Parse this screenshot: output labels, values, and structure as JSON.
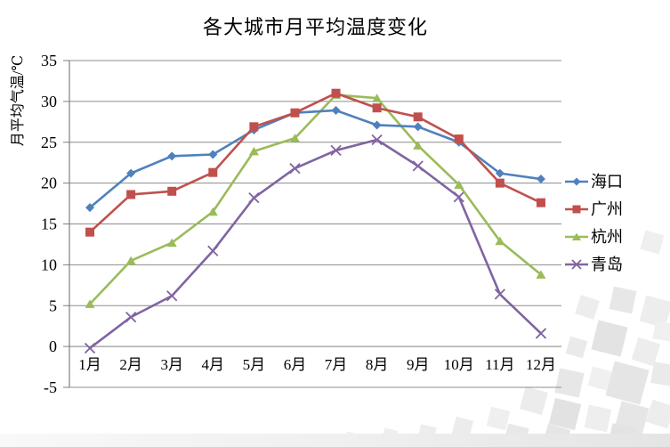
{
  "chart_data": {
    "type": "line",
    "title": "各大城市月平均温度变化",
    "ylabel": "月平均气温/℃",
    "xlabel": "",
    "categories": [
      "1月",
      "2月",
      "3月",
      "4月",
      "5月",
      "6月",
      "7月",
      "8月",
      "9月",
      "10月",
      "11月",
      "12月"
    ],
    "y_ticks": [
      35,
      30,
      25,
      20,
      15,
      10,
      5,
      0,
      -5
    ],
    "ylim": [
      -5,
      35
    ],
    "grid": "horizontal",
    "legend_position": "right",
    "gridline_color": "#8c8c8c",
    "axis_color": "#7f7f7f",
    "series": [
      {
        "name": "海口",
        "color": "#4F81BD",
        "marker": "diamond",
        "values": [
          17.0,
          21.2,
          23.3,
          23.5,
          26.5,
          28.6,
          28.9,
          27.1,
          26.9,
          25.0,
          21.2,
          20.5
        ]
      },
      {
        "name": "广州",
        "color": "#C0504D",
        "marker": "square",
        "values": [
          14.0,
          18.6,
          19.0,
          21.3,
          26.9,
          28.6,
          31.0,
          29.2,
          28.1,
          25.4,
          20.0,
          17.6
        ]
      },
      {
        "name": "杭州",
        "color": "#9BBB59",
        "marker": "triangle",
        "values": [
          5.2,
          10.5,
          12.7,
          16.5,
          23.9,
          25.5,
          30.8,
          30.4,
          24.6,
          19.8,
          12.9,
          8.8
        ]
      },
      {
        "name": "青岛",
        "color": "#8064A2",
        "marker": "x",
        "values": [
          -0.2,
          3.6,
          6.2,
          11.7,
          18.2,
          21.8,
          24.0,
          25.3,
          22.1,
          18.3,
          6.4,
          1.6
        ]
      }
    ]
  }
}
